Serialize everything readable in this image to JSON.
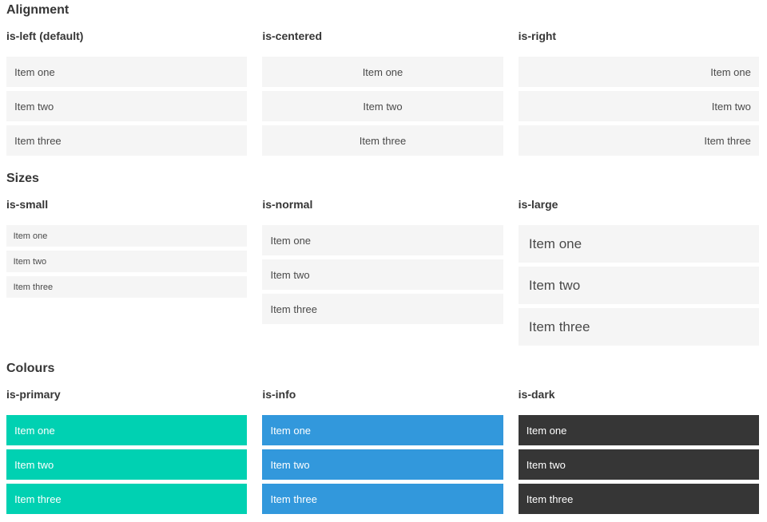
{
  "sections": [
    {
      "title": "Alignment",
      "columns": [
        {
          "label": "is-left (default)",
          "items": [
            "Item one",
            "Item two",
            "Item three"
          ]
        },
        {
          "label": "is-centered",
          "items": [
            "Item one",
            "Item two",
            "Item three"
          ]
        },
        {
          "label": "is-right",
          "items": [
            "Item one",
            "Item two",
            "Item three"
          ]
        }
      ]
    },
    {
      "title": "Sizes",
      "columns": [
        {
          "label": "is-small",
          "items": [
            "Item one",
            "Item two",
            "Item three"
          ]
        },
        {
          "label": "is-normal",
          "items": [
            "Item one",
            "Item two",
            "Item three"
          ]
        },
        {
          "label": "is-large",
          "items": [
            "Item one",
            "Item two",
            "Item three"
          ]
        }
      ]
    },
    {
      "title": "Colours",
      "columns": [
        {
          "label": "is-primary",
          "items": [
            "Item one",
            "Item two",
            "Item three"
          ]
        },
        {
          "label": "is-info",
          "items": [
            "Item one",
            "Item two",
            "Item three"
          ]
        },
        {
          "label": "is-dark",
          "items": [
            "Item one",
            "Item two",
            "Item three"
          ]
        }
      ]
    }
  ],
  "colors": {
    "primary": "#00d1b2",
    "info": "#3298dc",
    "dark": "#363636",
    "item_bg": "#f5f5f5",
    "item_text": "#4a4a4a",
    "heading": "#363636",
    "on_color": "#ffffff"
  }
}
